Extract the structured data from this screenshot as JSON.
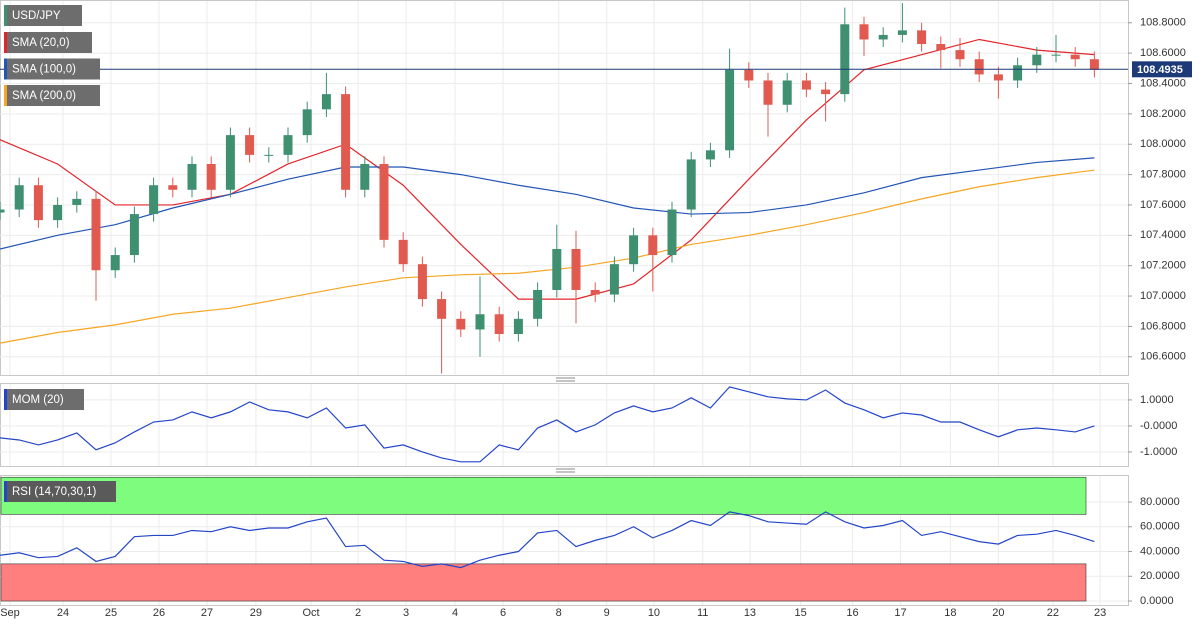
{
  "chart_data": [
    {
      "type": "candlestick",
      "title": "USD/JPY",
      "up_color": "#3f8f71",
      "down_color": "#e05a50",
      "x": [
        0,
        1,
        2,
        3,
        4,
        5,
        6,
        7,
        8,
        9,
        10,
        11,
        12,
        13,
        14,
        15,
        16,
        17,
        18,
        19,
        20,
        21,
        22,
        23,
        24,
        25,
        26,
        27,
        28,
        29,
        30,
        31,
        32,
        33,
        34,
        35,
        36,
        37,
        38,
        39,
        40,
        41,
        42,
        43,
        44,
        45,
        46,
        47,
        48,
        49,
        50,
        51,
        52,
        53,
        54,
        55,
        56,
        57
      ],
      "open": [
        107.55,
        107.57,
        107.73,
        107.5,
        107.6,
        107.64,
        107.17,
        107.27,
        107.54,
        107.73,
        107.7,
        107.87,
        107.7,
        108.06,
        107.93,
        107.93,
        108.06,
        108.23,
        108.33,
        107.7,
        107.87,
        107.37,
        107.21,
        106.98,
        106.85,
        106.78,
        106.88,
        106.75,
        106.85,
        107.04,
        107.31,
        107.04,
        107.01,
        107.21,
        107.4,
        107.27,
        107.57,
        107.9,
        107.96,
        108.49,
        108.42,
        108.26,
        108.42,
        108.36,
        108.33,
        108.79,
        108.69,
        108.72,
        108.75,
        108.66,
        108.62,
        108.56,
        108.46,
        108.42,
        108.52,
        108.59,
        108.59,
        108.56
      ],
      "high": [
        107.62,
        107.78,
        107.78,
        107.65,
        107.69,
        107.69,
        107.32,
        107.59,
        107.78,
        107.78,
        107.92,
        107.92,
        108.11,
        108.11,
        107.98,
        108.11,
        108.28,
        108.47,
        108.38,
        107.92,
        107.92,
        107.42,
        107.26,
        107.03,
        106.9,
        107.13,
        106.93,
        106.9,
        107.09,
        107.47,
        107.43,
        107.09,
        107.26,
        107.45,
        107.45,
        107.62,
        107.95,
        108.01,
        108.63,
        108.54,
        108.47,
        108.47,
        108.47,
        108.41,
        108.9,
        108.84,
        108.77,
        108.93,
        108.8,
        108.71,
        108.7,
        108.61,
        108.51,
        108.57,
        108.64,
        108.72,
        108.64,
        108.61
      ],
      "low": [
        107.5,
        107.52,
        107.45,
        107.45,
        107.55,
        106.97,
        107.12,
        107.22,
        107.49,
        107.65,
        107.65,
        107.65,
        107.65,
        107.88,
        107.88,
        107.88,
        108.01,
        108.18,
        107.65,
        107.65,
        107.32,
        107.16,
        106.93,
        106.49,
        106.73,
        106.6,
        106.7,
        106.7,
        106.8,
        106.99,
        106.82,
        106.96,
        106.96,
        107.16,
        107.03,
        107.22,
        107.52,
        107.85,
        107.91,
        108.37,
        108.05,
        108.21,
        108.31,
        108.15,
        108.28,
        108.58,
        108.64,
        108.67,
        108.61,
        108.5,
        108.51,
        108.41,
        108.3,
        108.37,
        108.47,
        108.54,
        108.51,
        108.44
      ],
      "close": [
        107.57,
        107.73,
        107.5,
        107.6,
        107.64,
        107.17,
        107.27,
        107.54,
        107.73,
        107.7,
        107.87,
        107.7,
        108.06,
        107.93,
        107.93,
        108.06,
        108.23,
        108.33,
        107.7,
        107.87,
        107.37,
        107.21,
        106.98,
        106.85,
        106.78,
        106.88,
        106.75,
        106.85,
        107.04,
        107.31,
        107.04,
        107.01,
        107.21,
        107.4,
        107.27,
        107.57,
        107.9,
        107.96,
        108.49,
        108.42,
        108.26,
        108.42,
        108.36,
        108.33,
        108.79,
        108.69,
        108.72,
        108.75,
        108.66,
        108.62,
        108.56,
        108.46,
        108.42,
        108.52,
        108.59,
        108.59,
        108.56,
        108.49
      ],
      "series": [
        {
          "name": "SMA (20,0)",
          "color": "#e3242b",
          "x": [
            0,
            3,
            6,
            9,
            12,
            15,
            18,
            21,
            24,
            27,
            30,
            33,
            36,
            39,
            42,
            45,
            48,
            51,
            54,
            57
          ],
          "values": [
            108.03,
            107.87,
            107.6,
            107.6,
            107.67,
            107.87,
            108.0,
            107.73,
            107.34,
            106.98,
            106.98,
            107.08,
            107.37,
            107.77,
            108.16,
            108.49,
            108.59,
            108.69,
            108.62,
            108.59
          ]
        },
        {
          "name": "SMA (100,0)",
          "color": "#2255b5",
          "x": [
            0,
            3,
            6,
            9,
            12,
            15,
            18,
            21,
            24,
            27,
            30,
            33,
            36,
            39,
            42,
            45,
            48,
            51,
            54,
            57
          ],
          "values": [
            107.31,
            107.4,
            107.47,
            107.58,
            107.67,
            107.77,
            107.85,
            107.85,
            107.8,
            107.73,
            107.67,
            107.58,
            107.54,
            107.55,
            107.6,
            107.68,
            107.78,
            107.83,
            107.88,
            107.91
          ]
        },
        {
          "name": "SMA (200,0)",
          "color": "#f5a623",
          "x": [
            0,
            3,
            6,
            9,
            12,
            15,
            18,
            21,
            24,
            27,
            30,
            33,
            36,
            39,
            42,
            45,
            48,
            51,
            54,
            57
          ],
          "values": [
            106.69,
            106.76,
            106.81,
            106.88,
            106.92,
            106.99,
            107.06,
            107.12,
            107.14,
            107.15,
            107.19,
            107.25,
            107.34,
            107.4,
            107.47,
            107.55,
            107.64,
            107.72,
            107.78,
            107.83
          ]
        }
      ],
      "last_price": 108.4935,
      "last_price_color": "#1c3a78",
      "xlim": [
        0,
        58.75
      ],
      "ylim": [
        106.48,
        108.95
      ],
      "yticks": [
        {
          "value": 108.8,
          "label": "108.8000"
        },
        {
          "value": 108.6,
          "label": "108.6000"
        },
        {
          "value": 108.4,
          "label": "108.4000"
        },
        {
          "value": 108.2,
          "label": "108.2000"
        },
        {
          "value": 108.0,
          "label": "108.0000"
        },
        {
          "value": 107.8,
          "label": "107.8000"
        },
        {
          "value": 107.6,
          "label": "107.6000"
        },
        {
          "value": 107.4,
          "label": "107.4000"
        },
        {
          "value": 107.2,
          "label": "107.2000"
        },
        {
          "value": 107.0,
          "label": "107.0000"
        },
        {
          "value": 106.8,
          "label": "106.8000"
        },
        {
          "value": 106.6,
          "label": "106.6000"
        }
      ],
      "xticks": [
        {
          "value": 0.52,
          "label": "Sep"
        },
        {
          "value": 3.28,
          "label": "24"
        },
        {
          "value": 5.78,
          "label": "25"
        },
        {
          "value": 8.28,
          "label": "26"
        },
        {
          "value": 10.78,
          "label": "27"
        },
        {
          "value": 13.33,
          "label": "29"
        },
        {
          "value": 16.2,
          "label": "Oct"
        },
        {
          "value": 18.65,
          "label": "2"
        },
        {
          "value": 21.15,
          "label": "3"
        },
        {
          "value": 23.7,
          "label": "4"
        },
        {
          "value": 26.2,
          "label": "6"
        },
        {
          "value": 29.1,
          "label": "8"
        },
        {
          "value": 31.6,
          "label": "9"
        },
        {
          "value": 34.06,
          "label": "10"
        },
        {
          "value": 36.6,
          "label": "11"
        },
        {
          "value": 39.06,
          "label": "13"
        },
        {
          "value": 41.7,
          "label": "15"
        },
        {
          "value": 44.4,
          "label": "16"
        },
        {
          "value": 46.9,
          "label": "17"
        },
        {
          "value": 49.5,
          "label": "18"
        },
        {
          "value": 52,
          "label": "20"
        },
        {
          "value": 54.84,
          "label": "22"
        },
        {
          "value": 57.3,
          "label": "23"
        }
      ],
      "grid": true
    },
    {
      "type": "line",
      "series": [
        {
          "name": "MOM (20)",
          "color": "#2445c8",
          "values": [
            -0.46,
            -0.54,
            -0.73,
            -0.54,
            -0.27,
            -0.92,
            -0.65,
            -0.23,
            0.15,
            0.23,
            0.54,
            0.31,
            0.54,
            0.92,
            0.62,
            0.54,
            0.31,
            0.69,
            -0.08,
            0.04,
            -0.85,
            -0.73,
            -1.0,
            -1.23,
            -1.38,
            -1.38,
            -0.73,
            -0.92,
            -0.08,
            0.23,
            -0.23,
            0.04,
            0.5,
            0.77,
            0.54,
            0.69,
            1.08,
            0.69,
            1.5,
            1.31,
            1.12,
            1.04,
            1.0,
            1.38,
            0.88,
            0.62,
            0.31,
            0.5,
            0.42,
            0.15,
            0.15,
            -0.15,
            -0.42,
            -0.15,
            -0.08,
            -0.15,
            -0.23,
            0
          ]
        }
      ],
      "ylim": [
        -1.54,
        1.65
      ],
      "yticks": [
        {
          "value": 1,
          "label": "1.0000"
        },
        {
          "value": 0,
          "label": "-0.0000"
        },
        {
          "value": -1,
          "label": "-1.0000"
        }
      ],
      "grid": true
    },
    {
      "type": "line",
      "series": [
        {
          "name": "RSI (14,70,30,1)",
          "color": "#2445c8",
          "values": [
            37,
            39,
            35,
            36,
            43,
            32,
            36,
            52,
            53,
            53,
            57,
            56,
            60,
            57,
            59,
            59,
            64,
            67,
            44,
            45,
            33,
            32,
            28,
            30,
            27,
            33,
            37,
            40,
            55,
            57,
            44,
            49,
            53,
            60,
            51,
            57,
            65,
            61,
            72,
            69,
            64,
            63,
            62,
            72,
            64,
            59,
            61,
            65,
            53,
            56,
            52,
            48,
            46,
            53,
            54,
            57,
            53,
            48
          ]
        }
      ],
      "bands": [
        {
          "range": [
            70,
            100
          ],
          "color": "#7dfc7d"
        },
        {
          "range": [
            0,
            30
          ],
          "color": "#ff7f7f"
        }
      ],
      "ylim": [
        -3.2,
        101.8
      ],
      "yticks": [
        {
          "value": 80,
          "label": "80.0000"
        },
        {
          "value": 60,
          "label": "60.0000"
        },
        {
          "value": 40,
          "label": "40.0000"
        },
        {
          "value": 20,
          "label": "20.0000"
        },
        {
          "value": 0,
          "label": "0.0000"
        }
      ],
      "grid": true
    }
  ]
}
